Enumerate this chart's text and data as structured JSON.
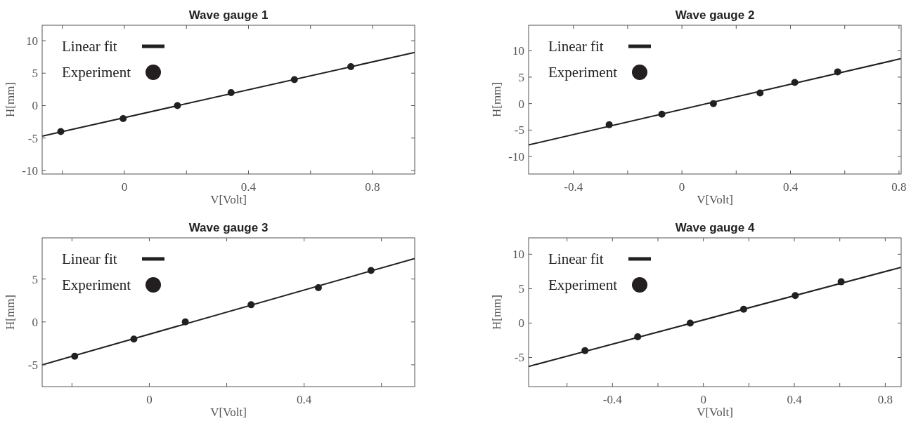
{
  "chart_data": [
    {
      "type": "scatter",
      "title": "Wave gauge 1",
      "xlabel": "V[Volt]",
      "ylabel": "H[mm]",
      "xlim": [
        -0.265,
        0.936
      ],
      "ylim": [
        -10.54,
        12.38
      ],
      "xticks": [
        {
          "value": -0.2,
          "label": null
        },
        0,
        {
          "value": 0.2,
          "label": null
        },
        0.4,
        {
          "value": 0.6,
          "label": null
        },
        0.8
      ],
      "yticks": [
        -10,
        -5,
        0,
        5,
        10
      ],
      "grid": false,
      "legend": "top left",
      "series": [
        {
          "name": "Linear fit",
          "type": "line",
          "marker": "none",
          "color": "#231f20",
          "x": [
            -0.265,
            0.936
          ],
          "values": [
            -4.7,
            8.2
          ]
        },
        {
          "name": "Experiment",
          "marker": "circle",
          "color": "#231f20",
          "x": [
            -0.205,
            -0.004,
            0.171,
            0.344,
            0.548,
            0.73
          ],
          "values": [
            -4,
            -2,
            0,
            2,
            4,
            6
          ]
        }
      ]
    },
    {
      "type": "scatter",
      "title": "Wave gauge 2",
      "xlabel": "V[Volt]",
      "ylabel": "H[mm]",
      "xlim": [
        -0.565,
        0.808
      ],
      "ylim": [
        -13.3,
        14.8
      ],
      "xticks": [
        -0.4,
        {
          "value": -0.2,
          "label": null
        },
        0,
        {
          "value": 0.2,
          "label": null
        },
        0.4,
        {
          "value": 0.6,
          "label": null
        },
        0.8
      ],
      "yticks": [
        -10,
        -5,
        0,
        5,
        10
      ],
      "grid": false,
      "legend": "top left",
      "series": [
        {
          "name": "Linear fit",
          "type": "line",
          "marker": "none",
          "color": "#231f20",
          "x": [
            -0.565,
            0.808
          ],
          "values": [
            -7.8,
            8.5
          ]
        },
        {
          "name": "Experiment",
          "marker": "circle",
          "color": "#231f20",
          "x": [
            -0.268,
            -0.074,
            0.116,
            0.288,
            0.416,
            0.574
          ],
          "values": [
            -4,
            -2,
            0,
            2,
            4,
            6
          ]
        }
      ]
    },
    {
      "type": "scatter",
      "title": "Wave gauge 3",
      "xlabel": "V[Volt]",
      "ylabel": "H[mm]",
      "xlim": [
        -0.277,
        0.686
      ],
      "ylim": [
        -7.54,
        9.8
      ],
      "xticks": [
        {
          "value": -0.2,
          "label": null
        },
        0,
        {
          "value": 0.2,
          "label": null
        },
        0.4,
        {
          "value": 0.6,
          "label": null
        }
      ],
      "yticks": [
        -5,
        0,
        5
      ],
      "grid": false,
      "legend": "top left",
      "series": [
        {
          "name": "Linear fit",
          "type": "line",
          "marker": "none",
          "color": "#231f20",
          "x": [
            -0.277,
            0.686
          ],
          "values": [
            -5.0,
            7.4
          ]
        },
        {
          "name": "Experiment",
          "marker": "circle",
          "color": "#231f20",
          "x": [
            -0.193,
            -0.04,
            0.093,
            0.263,
            0.437,
            0.573
          ],
          "values": [
            -4,
            -2,
            0,
            2,
            4,
            6
          ]
        }
      ]
    },
    {
      "type": "scatter",
      "title": "Wave gauge 4",
      "xlabel": "V[Volt]",
      "ylabel": "H[mm]",
      "xlim": [
        -0.769,
        0.87
      ],
      "ylim": [
        -9.23,
        12.38
      ],
      "xticks": [
        {
          "value": -0.6,
          "label": null
        },
        -0.4,
        {
          "value": -0.2,
          "label": null
        },
        0,
        {
          "value": 0.2,
          "label": null
        },
        0.4,
        {
          "value": 0.6,
          "label": null
        },
        0.8
      ],
      "yticks": [
        -5,
        0,
        5,
        10
      ],
      "grid": false,
      "legend": "top left",
      "series": [
        {
          "name": "Linear fit",
          "type": "line",
          "marker": "none",
          "color": "#231f20",
          "x": [
            -0.769,
            0.87
          ],
          "values": [
            -6.3,
            8.1
          ]
        },
        {
          "name": "Experiment",
          "marker": "circle",
          "color": "#231f20",
          "x": [
            -0.521,
            -0.289,
            -0.058,
            0.177,
            0.404,
            0.606
          ],
          "values": [
            -4,
            -2,
            0,
            2,
            4,
            6
          ]
        }
      ]
    }
  ]
}
